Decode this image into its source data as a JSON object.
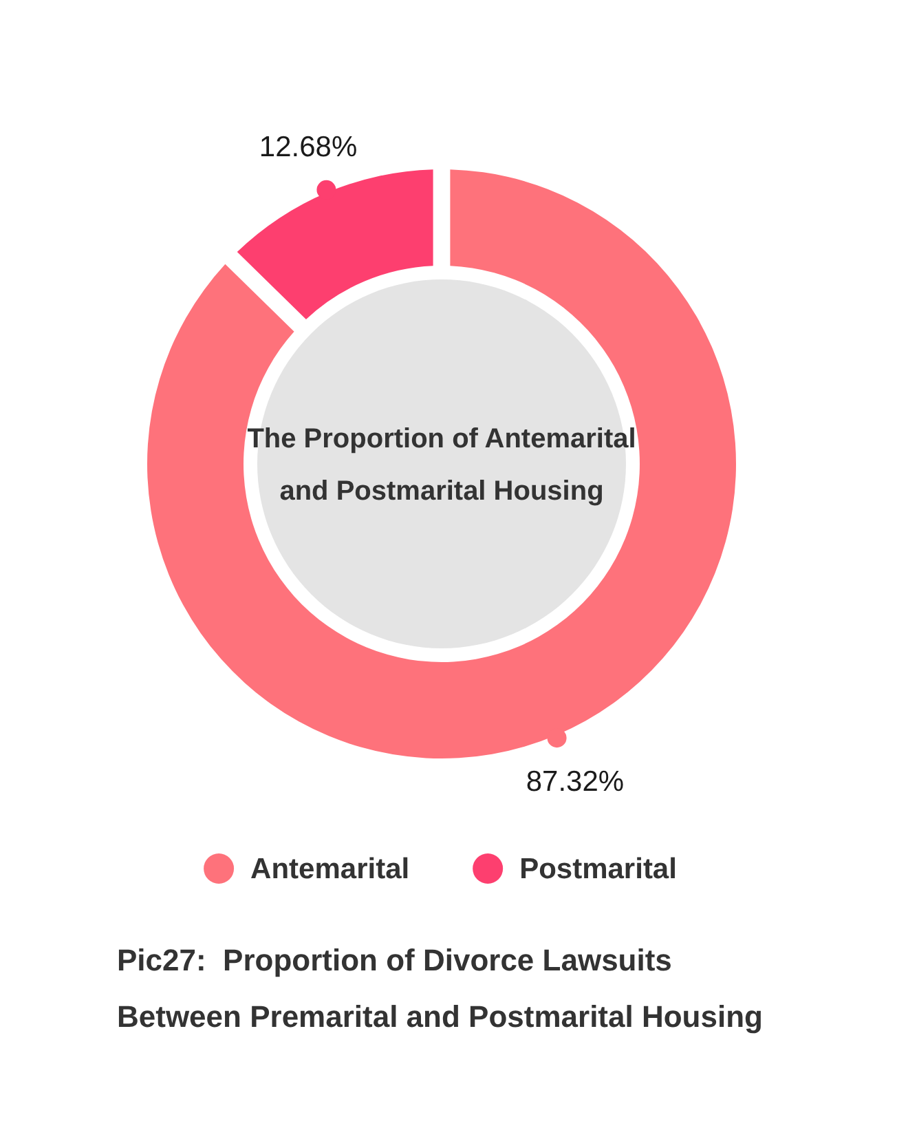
{
  "chart_data": {
    "type": "donut",
    "title": "The Proportion of Antemarital and Postmarital Housing",
    "categories": [
      "Antemarital",
      "Postmarital"
    ],
    "values": [
      87.32,
      12.68
    ],
    "colors": [
      "#fe727b",
      "#fd3f6f"
    ],
    "value_labels": [
      "87.32%",
      "12.68%"
    ],
    "legend": "bottom",
    "annotations": [
      "Pic27:  Proportion of Divorce Lawsuits Between Premarital and Postmarital Housing"
    ]
  }
}
